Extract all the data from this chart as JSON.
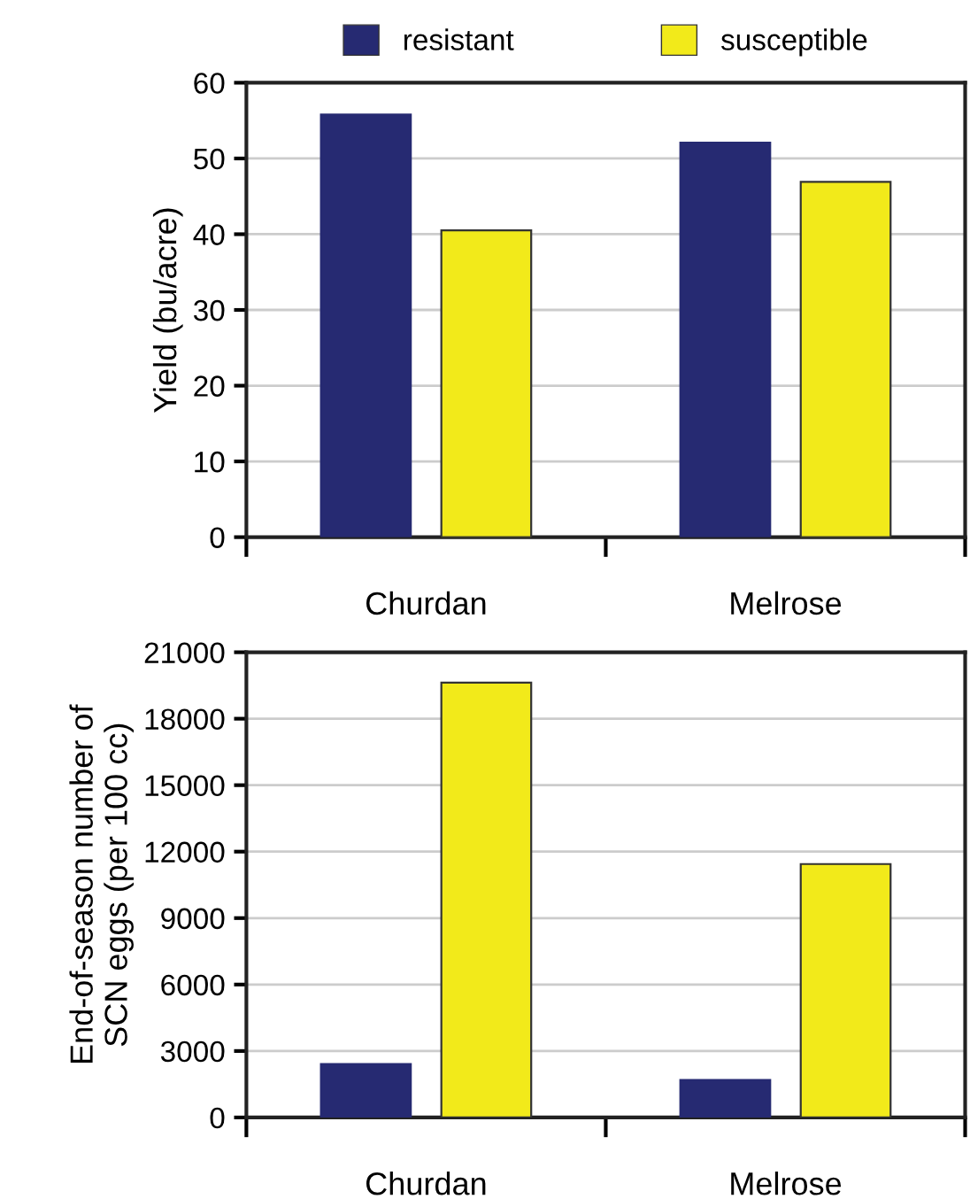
{
  "chart_data": [
    {
      "type": "bar",
      "categories": [
        "Churdan",
        "Melrose"
      ],
      "ylabel": "Yield (bu/acre)",
      "ylim": [
        0,
        60
      ],
      "yticks": [
        0,
        10,
        20,
        30,
        40,
        50,
        60
      ],
      "grid": "y",
      "legend": "top",
      "series": [
        {
          "name": "resistant",
          "color": "#262a72",
          "values": [
            55.8,
            52.1
          ]
        },
        {
          "name": "susceptible",
          "color": "#f2ea1a",
          "values": [
            40.5,
            46.9
          ]
        }
      ]
    },
    {
      "type": "bar",
      "categories": [
        "Churdan",
        "Melrose"
      ],
      "ylabel": "End-of-season number of\nSCN eggs (per 100 cc)",
      "ylim": [
        0,
        21000
      ],
      "yticks": [
        0,
        3000,
        6000,
        9000,
        12000,
        15000,
        18000,
        21000
      ],
      "grid": "y",
      "series": [
        {
          "color": "#262a72",
          "values": [
            2410,
            1690
          ]
        },
        {
          "color": "#f2ea1a",
          "values": [
            19630,
            11440
          ]
        }
      ]
    }
  ]
}
